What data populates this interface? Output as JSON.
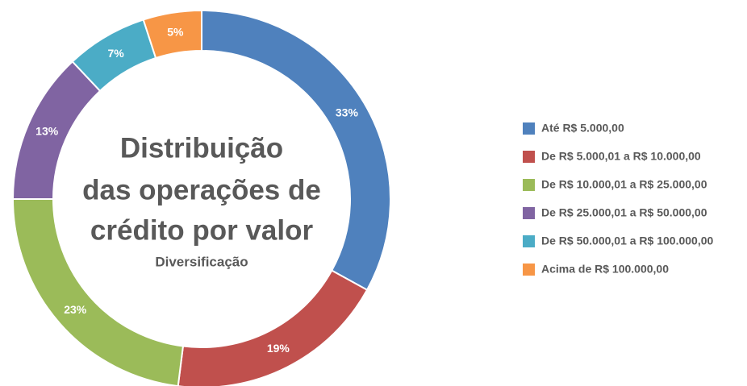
{
  "chart_data": {
    "type": "pie",
    "title": [
      "Distribuição",
      "das operações de",
      "crédito por valor"
    ],
    "subtitle": "Diversificação",
    "categories": [
      "Até R$ 5.000,00",
      "De R$ 5.000,01 a R$ 10.000,00",
      "De R$ 10.000,01 a R$ 25.000,00",
      "De R$ 25.000,01 a R$ 50.000,00",
      "De R$ 50.000,01 a R$ 100.000,00",
      "Acima de R$ 100.000,00"
    ],
    "values": [
      33,
      19,
      23,
      13,
      7,
      5
    ],
    "value_labels": [
      "33%",
      "19%",
      "23%",
      "13%",
      "7%",
      "5%"
    ],
    "colors": [
      "#4f81bd",
      "#c0504d",
      "#9bbb59",
      "#8064a2",
      "#4bacc6",
      "#f79646"
    ],
    "legend": "right"
  }
}
